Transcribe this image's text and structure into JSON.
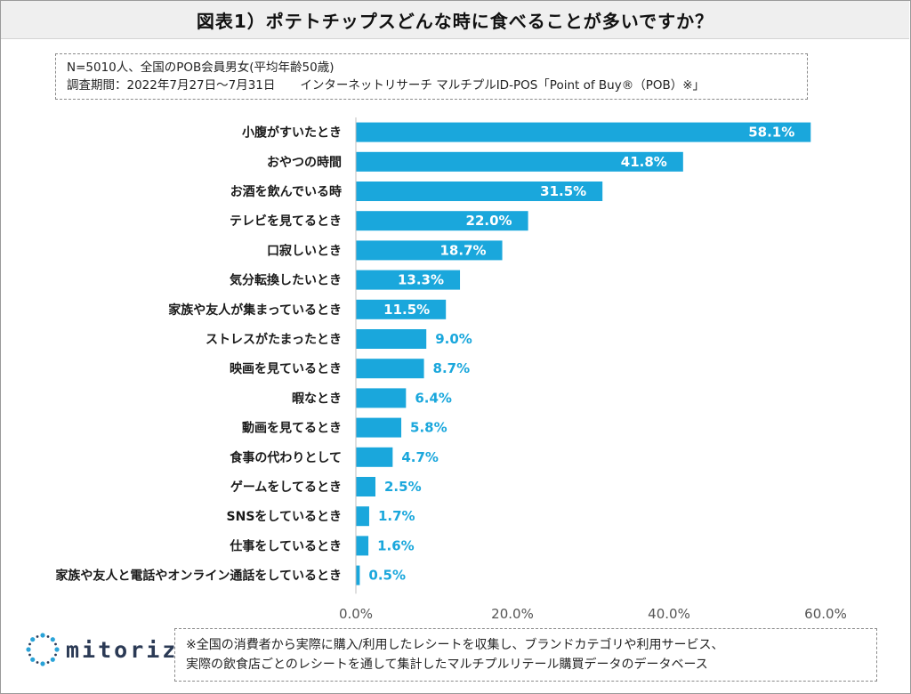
{
  "header": {
    "title": "図表1）ポテトチップスどんな時に食べることが多いですか？"
  },
  "survey_info": {
    "line1": "N=5010人、全国のPOB会員男女(平均年齢50歳)",
    "line2_period": "調査期間：2022年7月27日～7月31日",
    "line2_method": "インターネットリサーチ マルチプルID-POS「Point of Buy®（POB）※」"
  },
  "colors": {
    "bar": "#1aa7dc",
    "label_inside": "#ffffff",
    "label_outside": "#1aa7dc",
    "logo": "#2b3a55"
  },
  "chart_data": {
    "type": "bar",
    "orientation": "horizontal",
    "categories": [
      "小腹がすいたとき",
      "おやつの時間",
      "お酒を飲んでいる時",
      "テレビを見てるとき",
      "口寂しいとき",
      "気分転換したいとき",
      "家族や友人が集まっているとき",
      "ストレスがたまったとき",
      "映画を見ているとき",
      "暇なとき",
      "動画を見てるとき",
      "食事の代わりとして",
      "ゲームをしてるとき",
      "SNSをしているとき",
      "仕事をしているとき",
      "家族や友人と電話やオンライン通話をしているとき"
    ],
    "values": [
      58.1,
      41.8,
      31.5,
      22.0,
      18.7,
      13.3,
      11.5,
      9.0,
      8.7,
      6.4,
      5.8,
      4.7,
      2.5,
      1.7,
      1.6,
      0.5
    ],
    "value_labels": [
      "58.1%",
      "41.8%",
      "31.5%",
      "22.0%",
      "18.7%",
      "13.3%",
      "11.5%",
      "9.0%",
      "8.7%",
      "6.4%",
      "5.8%",
      "4.7%",
      "2.5%",
      "1.7%",
      "1.6%",
      "0.5%"
    ],
    "xlim": [
      0,
      60
    ],
    "xticks": [
      0,
      20,
      40,
      60
    ],
    "xtick_labels": [
      "0.0%",
      "20.0%",
      "40.0%",
      "60.0%"
    ],
    "grid": false,
    "legend": "none"
  },
  "footer": {
    "logo_text": "mitoriz",
    "logo_icon": "mitoriz-logo-icon",
    "note_line1": "※全国の消費者から実際に購入/利用したレシートを収集し、ブランドカテゴリや利用サービス、",
    "note_line2": "実際の飲食店ごとのレシートを通して集計したマルチプルリテール購買データのデータベース"
  }
}
